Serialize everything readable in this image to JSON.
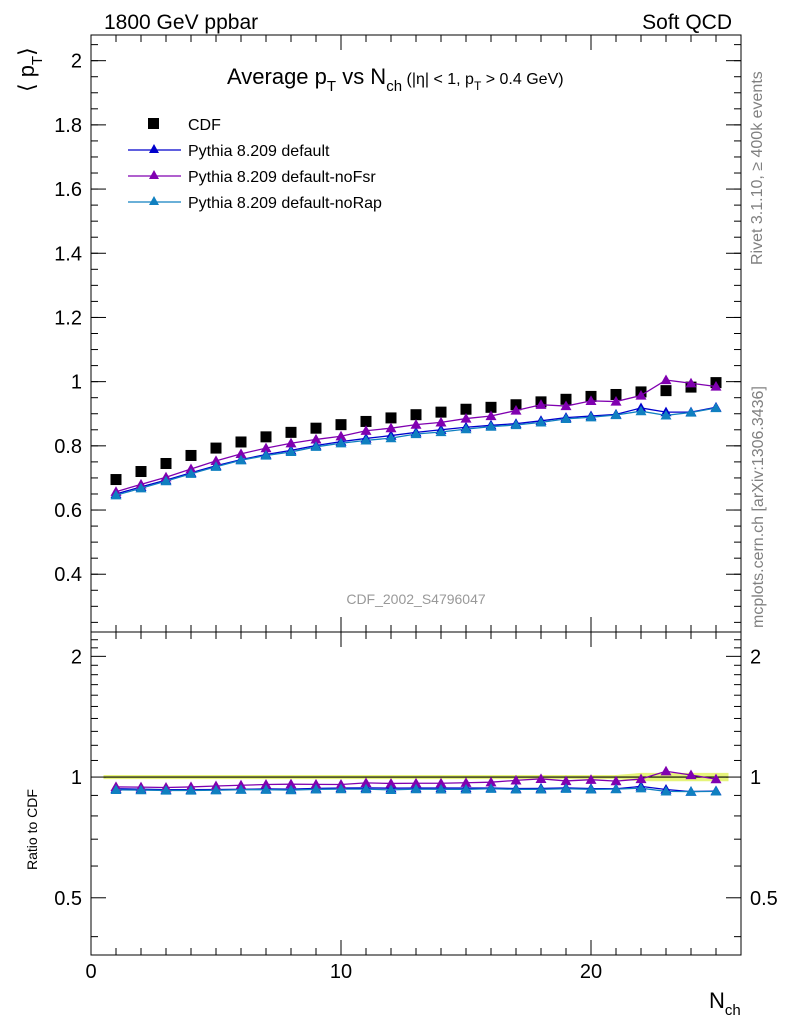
{
  "header": {
    "left": "1800 GeV ppbar",
    "right": "Soft QCD"
  },
  "side_text": {
    "rivet": "Rivet 3.1.10, ≥ 400k events",
    "mcplots": "mcplots.cern.ch [arXiv:1306.3436]"
  },
  "chart_data": [
    {
      "panel": "main",
      "type": "scatter",
      "title_parts": {
        "main": "Average p",
        "sub1": "T",
        "mid": " vs N",
        "sub2": "ch",
        "cut_a": " (|η| < 1, p",
        "cut_sub": "T",
        "cut_b": " > 0.4 GeV)"
      },
      "ylabel_parts": {
        "open": "⟨ p",
        "sub": "T",
        "close": "⟩"
      },
      "watermark": "CDF_2002_S4796047",
      "xlim": [
        0,
        26
      ],
      "ylim": [
        0.22,
        2.08
      ],
      "yticks": [
        "0.4",
        "0.6",
        "0.8",
        "1",
        "1.2",
        "1.4",
        "1.6",
        "1.8",
        "2"
      ],
      "legend_position": "top-left",
      "x": [
        1,
        2,
        3,
        4,
        5,
        6,
        7,
        8,
        9,
        10,
        11,
        12,
        13,
        14,
        15,
        16,
        17,
        18,
        19,
        20,
        21,
        22,
        23,
        24,
        25
      ],
      "series": [
        {
          "name": "CDF",
          "marker": "square",
          "color": "#000000",
          "values": [
            0.695,
            0.72,
            0.745,
            0.77,
            0.793,
            0.812,
            0.828,
            0.842,
            0.855,
            0.866,
            0.876,
            0.887,
            0.897,
            0.905,
            0.914,
            0.92,
            0.928,
            0.937,
            0.945,
            0.954,
            0.96,
            0.968,
            0.972,
            0.983,
            0.997
          ]
        },
        {
          "name": "Pythia 8.209 default",
          "marker": "triangle",
          "color": "#0000cc",
          "values": [
            0.65,
            0.672,
            0.693,
            0.716,
            0.738,
            0.757,
            0.773,
            0.786,
            0.801,
            0.813,
            0.823,
            0.832,
            0.842,
            0.85,
            0.858,
            0.864,
            0.869,
            0.878,
            0.888,
            0.893,
            0.898,
            0.918,
            0.905,
            0.905,
            0.92
          ]
        },
        {
          "name": "Pythia 8.209 default-noFsr",
          "marker": "triangle",
          "color": "#8000b0",
          "values": [
            0.657,
            0.68,
            0.702,
            0.728,
            0.753,
            0.775,
            0.793,
            0.808,
            0.82,
            0.83,
            0.847,
            0.855,
            0.866,
            0.873,
            0.885,
            0.893,
            0.91,
            0.928,
            0.924,
            0.94,
            0.938,
            0.957,
            1.005,
            0.995,
            0.985
          ]
        },
        {
          "name": "Pythia 8.209 default-noRap",
          "marker": "triangle",
          "color": "#1080c0",
          "values": [
            0.646,
            0.668,
            0.69,
            0.713,
            0.735,
            0.755,
            0.77,
            0.781,
            0.797,
            0.808,
            0.817,
            0.824,
            0.837,
            0.843,
            0.852,
            0.86,
            0.865,
            0.873,
            0.884,
            0.889,
            0.896,
            0.908,
            0.895,
            0.904,
            0.918
          ]
        }
      ]
    },
    {
      "panel": "ratio",
      "type": "line",
      "ylabel": "Ratio to CDF",
      "xlabel": "N",
      "xlabel_sub": "ch",
      "xlim": [
        0,
        26
      ],
      "ylim": [
        0.36,
        2.3
      ],
      "log_y": true,
      "xticks": [
        "0",
        "10",
        "20"
      ],
      "yticks": [
        "0.5",
        "1",
        "2"
      ],
      "band_color": "#e6f47a",
      "ref_line_color": "#000000",
      "x": [
        1,
        2,
        3,
        4,
        5,
        6,
        7,
        8,
        9,
        10,
        11,
        12,
        13,
        14,
        15,
        16,
        17,
        18,
        19,
        20,
        21,
        22,
        23,
        24,
        25
      ],
      "series": [
        {
          "name": "Pythia 8.209 default",
          "color": "#0000cc",
          "values": [
            0.935,
            0.933,
            0.93,
            0.93,
            0.931,
            0.932,
            0.934,
            0.933,
            0.937,
            0.939,
            0.94,
            0.938,
            0.939,
            0.939,
            0.939,
            0.939,
            0.936,
            0.937,
            0.94,
            0.936,
            0.935,
            0.948,
            0.931,
            0.92,
            0.923
          ]
        },
        {
          "name": "Pythia 8.209 default-noFsr",
          "color": "#8000b0",
          "values": [
            0.945,
            0.944,
            0.942,
            0.945,
            0.95,
            0.954,
            0.958,
            0.96,
            0.959,
            0.958,
            0.967,
            0.964,
            0.965,
            0.965,
            0.968,
            0.971,
            0.981,
            0.99,
            0.978,
            0.985,
            0.977,
            0.989,
            1.034,
            1.012,
            0.988
          ]
        },
        {
          "name": "Pythia 8.209 default-noRap",
          "color": "#1080c0",
          "values": [
            0.929,
            0.928,
            0.926,
            0.926,
            0.927,
            0.93,
            0.93,
            0.928,
            0.932,
            0.933,
            0.933,
            0.929,
            0.933,
            0.932,
            0.932,
            0.935,
            0.932,
            0.932,
            0.935,
            0.932,
            0.933,
            0.938,
            0.921,
            0.92,
            0.921
          ]
        }
      ]
    }
  ]
}
